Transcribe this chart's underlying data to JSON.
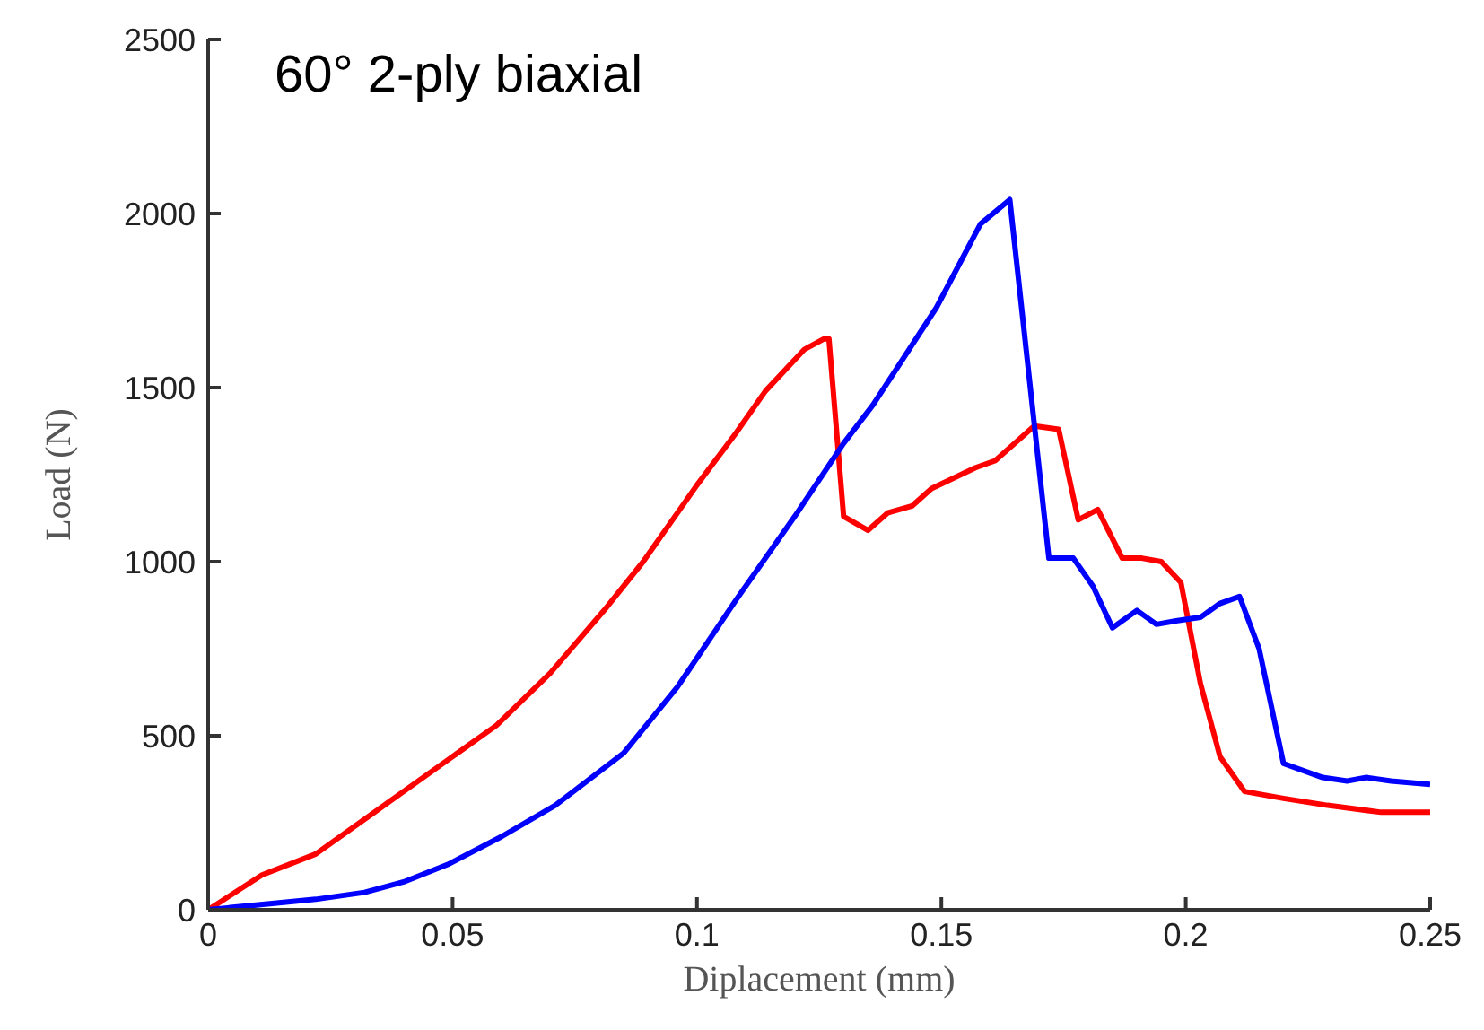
{
  "chart_data": {
    "type": "line",
    "title": "60° 2-ply biaxial",
    "xlabel": "Diplacement (mm)",
    "ylabel": "Load (N)",
    "xlim": [
      0,
      0.25
    ],
    "xticks": [
      0,
      0.05,
      0.1,
      0.15,
      0.2,
      0.25
    ],
    "ylim": [
      0,
      2500
    ],
    "yticks": [
      0,
      500,
      1000,
      1500,
      2000,
      2500
    ],
    "marker": "none",
    "line_style": "solid",
    "series": [
      {
        "color": "#ff0000",
        "x": [
          0,
          0.011,
          0.022,
          0.033,
          0.049,
          0.054,
          0.059,
          0.07,
          0.081,
          0.089,
          0.1,
          0.108,
          0.114,
          0.122,
          0.126,
          0.127,
          0.13,
          0.135,
          0.139,
          0.144,
          0.148,
          0.157,
          0.161,
          0.169,
          0.174,
          0.178,
          0.182,
          0.187,
          0.191,
          0.195,
          0.199,
          0.203,
          0.207,
          0.212,
          0.22,
          0.229,
          0.24,
          0.25
        ],
        "values": [
          0,
          100,
          160,
          270,
          430,
          480,
          530,
          680,
          860,
          1000,
          1220,
          1370,
          1490,
          1610,
          1640,
          1640,
          1130,
          1090,
          1140,
          1160,
          1210,
          1270,
          1290,
          1390,
          1380,
          1120,
          1150,
          1010,
          1010,
          1000,
          940,
          650,
          440,
          340,
          320,
          300,
          280,
          280
        ]
      },
      {
        "color": "#0000ff",
        "x": [
          0,
          0.022,
          0.032,
          0.04,
          0.049,
          0.06,
          0.071,
          0.085,
          0.096,
          0.108,
          0.12,
          0.13,
          0.136,
          0.149,
          0.158,
          0.164,
          0.172,
          0.177,
          0.181,
          0.185,
          0.19,
          0.194,
          0.198,
          0.203,
          0.207,
          0.211,
          0.215,
          0.22,
          0.228,
          0.233,
          0.237,
          0.242,
          0.25
        ],
        "values": [
          0,
          30,
          50,
          80,
          130,
          210,
          300,
          450,
          640,
          890,
          1130,
          1340,
          1450,
          1730,
          1970,
          2040,
          1010,
          1010,
          930,
          810,
          860,
          820,
          830,
          840,
          880,
          900,
          750,
          420,
          380,
          370,
          380,
          370,
          360
        ]
      }
    ]
  }
}
